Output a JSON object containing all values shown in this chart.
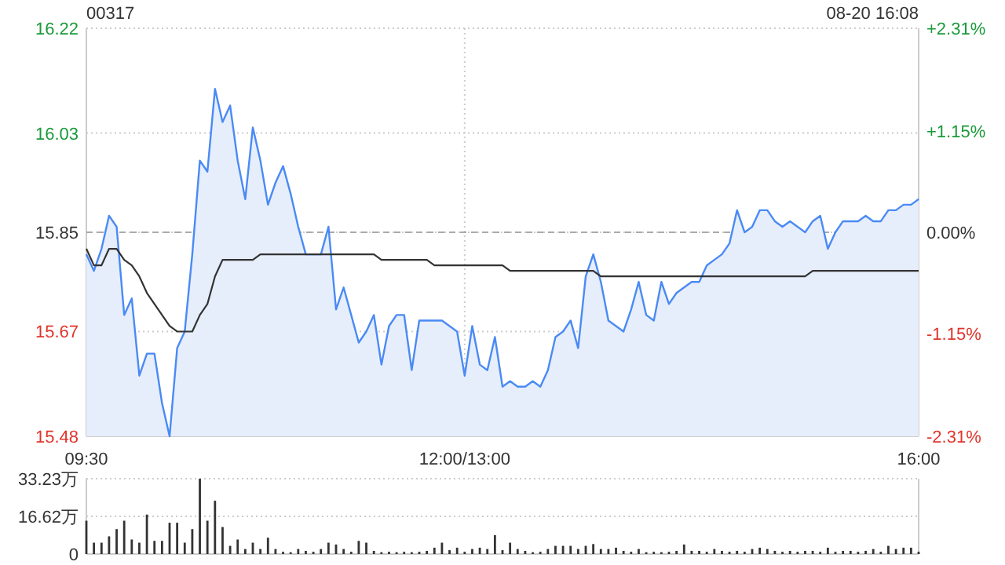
{
  "chart_data": [
    {
      "type": "area",
      "title": "00317",
      "annotations": [
        "08-20 16:08"
      ],
      "grid": true,
      "marker": "none",
      "line_style": "solid",
      "categories": [
        "09:30",
        null,
        null,
        null,
        null,
        null,
        null,
        null,
        null,
        null,
        null,
        null,
        null,
        null,
        null,
        null,
        null,
        null,
        null,
        null,
        null,
        null,
        null,
        null,
        null,
        null,
        null,
        null,
        null,
        null,
        null,
        null,
        null,
        null,
        null,
        null,
        null,
        null,
        null,
        null,
        null,
        null,
        null,
        null,
        null,
        null,
        null,
        null,
        null,
        null,
        "12:00/13:00",
        null,
        null,
        null,
        null,
        null,
        null,
        null,
        null,
        null,
        null,
        null,
        null,
        null,
        null,
        null,
        null,
        null,
        null,
        null,
        null,
        null,
        null,
        null,
        null,
        null,
        null,
        null,
        null,
        null,
        null,
        null,
        null,
        null,
        null,
        null,
        null,
        null,
        null,
        null,
        null,
        null,
        null,
        null,
        null,
        null,
        null,
        null,
        null,
        null,
        null,
        null,
        null,
        null,
        null,
        null,
        null,
        null,
        null,
        null,
        "16:00"
      ],
      "ylim": [
        15.48,
        16.22
      ],
      "yticks": [
        15.48,
        15.67,
        15.85,
        16.03,
        16.22
      ],
      "y2lim": [
        -2.31,
        2.31
      ],
      "y2ticks": [
        {
          "value": -2.31,
          "label": "-2.31%"
        },
        {
          "value": -1.15,
          "label": "-1.15%"
        },
        {
          "value": 0,
          "label": "0.00%"
        },
        {
          "value": 1.15,
          "label": "+1.15%"
        },
        {
          "value": 2.31,
          "label": "+2.31%"
        }
      ],
      "ref_lines": [
        {
          "axis": "y",
          "value": 15.85,
          "color": "#aaaaaa",
          "line_style": "dashed"
        }
      ],
      "series": [
        {
          "color": "#4a8af4",
          "values": [
            15.81,
            15.78,
            15.82,
            15.88,
            15.86,
            15.7,
            15.73,
            15.59,
            15.63,
            15.63,
            15.54,
            15.48,
            15.64,
            15.67,
            15.81,
            15.98,
            15.96,
            16.11,
            16.05,
            16.08,
            15.98,
            15.91,
            16.04,
            15.98,
            15.9,
            15.94,
            15.97,
            15.92,
            15.86,
            15.81,
            15.81,
            15.81,
            15.86,
            15.71,
            15.75,
            15.7,
            15.65,
            15.67,
            15.7,
            15.61,
            15.68,
            15.7,
            15.7,
            15.6,
            15.69,
            15.69,
            15.69,
            15.69,
            15.68,
            15.67,
            15.59,
            15.68,
            15.61,
            15.6,
            15.66,
            15.57,
            15.58,
            15.57,
            15.57,
            15.58,
            15.57,
            15.6,
            15.66,
            15.67,
            15.69,
            15.64,
            15.77,
            15.81,
            15.76,
            15.69,
            15.68,
            15.67,
            15.71,
            15.76,
            15.7,
            15.69,
            15.76,
            15.72,
            15.74,
            15.75,
            15.76,
            15.76,
            15.79,
            15.8,
            15.81,
            15.83,
            15.89,
            15.85,
            15.86,
            15.89,
            15.89,
            15.87,
            15.86,
            15.87,
            15.86,
            15.85,
            15.87,
            15.88,
            15.82,
            15.85,
            15.87,
            15.87,
            15.87,
            15.88,
            15.87,
            15.87,
            15.89,
            15.89,
            15.9,
            15.9,
            15.91
          ]
        },
        {
          "type": "line",
          "color": "#333333",
          "values": [
            15.82,
            15.79,
            15.79,
            15.82,
            15.82,
            15.8,
            15.79,
            15.77,
            15.74,
            15.72,
            15.7,
            15.68,
            15.67,
            15.67,
            15.67,
            15.7,
            15.72,
            15.77,
            15.8,
            15.8,
            15.8,
            15.8,
            15.8,
            15.81,
            15.81,
            15.81,
            15.81,
            15.81,
            15.81,
            15.81,
            15.81,
            15.81,
            15.81,
            15.81,
            15.81,
            15.81,
            15.81,
            15.81,
            15.81,
            15.8,
            15.8,
            15.8,
            15.8,
            15.8,
            15.8,
            15.8,
            15.79,
            15.79,
            15.79,
            15.79,
            15.79,
            15.79,
            15.79,
            15.79,
            15.79,
            15.79,
            15.78,
            15.78,
            15.78,
            15.78,
            15.78,
            15.78,
            15.78,
            15.78,
            15.78,
            15.78,
            15.78,
            15.78,
            15.77,
            15.77,
            15.77,
            15.77,
            15.77,
            15.77,
            15.77,
            15.77,
            15.77,
            15.77,
            15.77,
            15.77,
            15.77,
            15.77,
            15.77,
            15.77,
            15.77,
            15.77,
            15.77,
            15.77,
            15.77,
            15.77,
            15.77,
            15.77,
            15.77,
            15.77,
            15.77,
            15.77,
            15.78,
            15.78,
            15.78,
            15.78,
            15.78,
            15.78,
            15.78,
            15.78,
            15.78,
            15.78,
            15.78,
            15.78,
            15.78,
            15.78,
            15.78
          ]
        }
      ]
    },
    {
      "type": "bar",
      "color": "#333333",
      "grid": "y",
      "categories": [
        null,
        null,
        null,
        null,
        null,
        null,
        null,
        null,
        null,
        null,
        null,
        null,
        null,
        null,
        null,
        null,
        null,
        null,
        null,
        null,
        null,
        null,
        null,
        null,
        null,
        null,
        null,
        null,
        null,
        null,
        null,
        null,
        null,
        null,
        null,
        null,
        null,
        null,
        null,
        null,
        null,
        null,
        null,
        null,
        null,
        null,
        null,
        null,
        null,
        null,
        null,
        null,
        null,
        null,
        null,
        null,
        null,
        null,
        null,
        null,
        null,
        null,
        null,
        null,
        null,
        null,
        null,
        null,
        null,
        null,
        null,
        null,
        null,
        null,
        null,
        null,
        null,
        null,
        null,
        null,
        null,
        null,
        null,
        null,
        null,
        null,
        null,
        null,
        null,
        null,
        null,
        null,
        null,
        null,
        null,
        null,
        null,
        null,
        null,
        null,
        null,
        null,
        null,
        null,
        null,
        null,
        null,
        null,
        null,
        null,
        null
      ],
      "ylim": [
        0,
        33.23
      ],
      "yticks": [
        0,
        {
          "value": 16.62,
          "label": "16.62万"
        },
        {
          "value": 33.23,
          "label": "33.23万"
        }
      ],
      "values": [
        14.7,
        5,
        5,
        7.8,
        11,
        14.7,
        6.4,
        5,
        17.4,
        5.8,
        5.8,
        13.8,
        13.8,
        5,
        11,
        33.2,
        14.7,
        23.5,
        11.9,
        3.6,
        6.4,
        2.2,
        5,
        2.2,
        7.2,
        2.2,
        1.0,
        0.8,
        2.2,
        1.4,
        1.0,
        2.2,
        5,
        4.2,
        2.2,
        1.0,
        5.8,
        5,
        1.4,
        0.8,
        1.0,
        0.8,
        1.0,
        0.8,
        1.0,
        1.4,
        2.8,
        5,
        1.7,
        2.8,
        1.0,
        2.2,
        2.8,
        2.2,
        8.3,
        1.7,
        5,
        2.2,
        1.4,
        0.8,
        1.0,
        2.2,
        3.6,
        3.6,
        3.6,
        2.2,
        3.6,
        4.4,
        2.2,
        2.2,
        2.8,
        1.4,
        1.0,
        2.2,
        0.8,
        1.0,
        0.8,
        1.0,
        1.4,
        4.2,
        1.4,
        1.4,
        1.0,
        2.2,
        1.4,
        1.0,
        1.4,
        1.0,
        2.2,
        2.8,
        2.2,
        1.4,
        1.0,
        1.4,
        1.0,
        1.4,
        1.4,
        1.0,
        2.8,
        1.0,
        1.4,
        1.4,
        1.0,
        1.4,
        2.2,
        1.0,
        3.6,
        2.2,
        2.8,
        2.8,
        1.0
      ]
    }
  ]
}
